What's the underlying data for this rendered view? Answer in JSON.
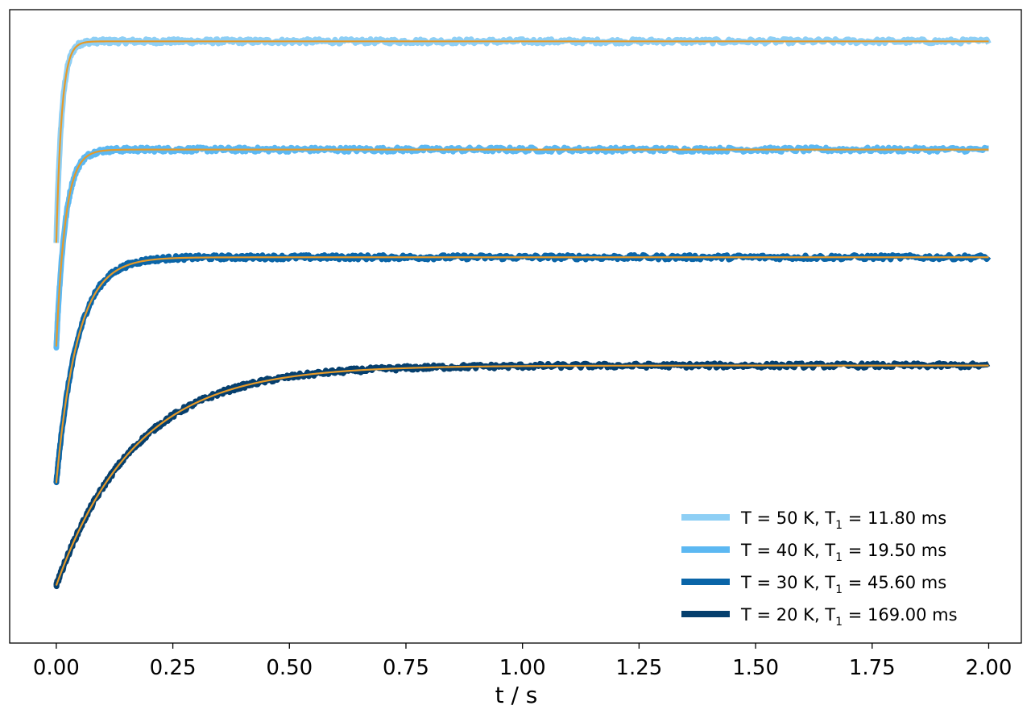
{
  "chart_data": {
    "type": "line",
    "title": "",
    "xlabel": "t / s",
    "ylabel": "",
    "xlim": [
      -0.1,
      2.07
    ],
    "ylim": [
      -0.05,
      1.05
    ],
    "y_ticks_shown": false,
    "x_ticks": [
      "0.00",
      "0.25",
      "0.50",
      "0.75",
      "1.00",
      "1.25",
      "1.50",
      "1.75",
      "2.00"
    ],
    "legend_position": "bottom-right",
    "fit_color": "#e69a28",
    "series": [
      {
        "name_prefix": "T = 50 K, T",
        "name_sub": "1",
        "name_suffix": " = 11.80 ms",
        "T1_ms": 11.8,
        "color": "#8ecff5",
        "t_start": 0.0,
        "y_start": 0.645,
        "y_plateau": 0.995
      },
      {
        "name_prefix": "T = 40 K, T",
        "name_sub": "1",
        "name_suffix": " = 19.50 ms",
        "T1_ms": 19.5,
        "color": "#5cb8f2",
        "t_start": 0.0,
        "y_start": 0.465,
        "y_plateau": 0.807
      },
      {
        "name_prefix": "T = 30 K, T",
        "name_sub": "1",
        "name_suffix": " = 45.60 ms",
        "T1_ms": 45.6,
        "color": "#0a65a8",
        "t_start": 0.0,
        "y_start": 0.228,
        "y_plateau": 0.62
      },
      {
        "name_prefix": "T = 20 K, T",
        "name_sub": "1",
        "name_suffix": " = 169.00 ms",
        "T1_ms": 169.0,
        "color": "#053f6e",
        "t_start": 0.0,
        "y_start": 0.05,
        "y_plateau": 0.432
      }
    ]
  }
}
